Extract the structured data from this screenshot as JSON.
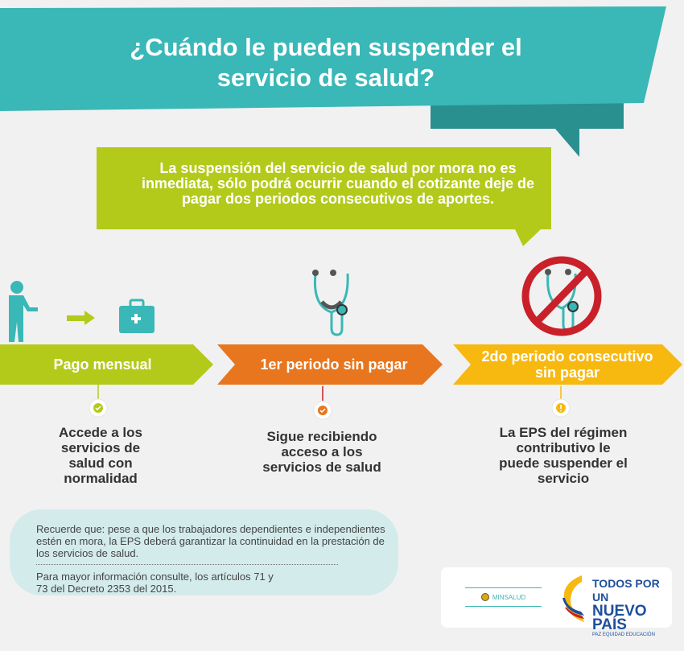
{
  "title": "¿Cuándo le pueden suspender el servicio de salud?",
  "intro": "La suspensión del servicio de salud por mora no es inmediata, sólo podrá ocurrir cuando el cotizante deje de pagar dos periodos consecutivos de aportes.",
  "steps": [
    {
      "label": "Pago mensual",
      "color": "#b3ca1a",
      "status_icon": "check-icon",
      "description": "Accede a los servicios de salud con normalidad"
    },
    {
      "label": "1er periodo sin pagar",
      "color": "#e8761e",
      "status_icon": "check-icon",
      "description": "Sigue recibiendo acceso a los servicios de salud"
    },
    {
      "label": "2do periodo consecutivo sin pagar",
      "color": "#f7b90f",
      "status_icon": "exclamation-icon",
      "description": "La EPS del régimen contributivo le puede suspender el servicio"
    }
  ],
  "note": {
    "text": "Recuerde que: pese a que los trabajadores dependientes e independientes estén en mora, la EPS deberá garantizar la continuidad en la prestación de los servicios de salud.",
    "reference": "Para mayor información consulte, los artículos 71 y 73 del Decreto 2353 del 2015."
  },
  "logos": {
    "minsalud": "MINSALUD",
    "gov_line1": "TODOS POR UN",
    "gov_line2": "NUEVO PAÍS",
    "gov_tagline": "PAZ  EQUIDAD  EDUCACIÓN"
  },
  "colors": {
    "teal": "#3ab7b7",
    "green": "#b3ca1a",
    "orange": "#e8761e",
    "yellow": "#f7b90f"
  }
}
